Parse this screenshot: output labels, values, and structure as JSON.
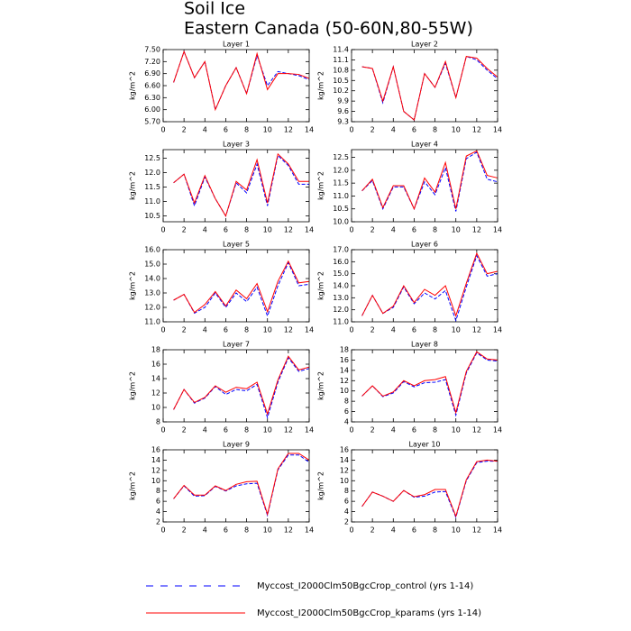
{
  "title": "Soil Ice",
  "subtitle": "Eastern Canada (50-60N,80-55W)",
  "chart_data": [
    {
      "type": "line",
      "title": "Layer 1",
      "ylabel": "kg/m^2",
      "x": [
        1,
        2,
        3,
        4,
        5,
        6,
        7,
        8,
        9,
        10,
        11,
        12,
        13,
        14
      ],
      "xlim": [
        0,
        14
      ],
      "xticks": [
        0,
        2,
        4,
        6,
        8,
        10,
        12,
        14
      ],
      "ylim": [
        5.7,
        7.5
      ],
      "yticks": [
        {
          "value": 5.7,
          "label": "5.70"
        },
        {
          "value": 6.0,
          "label": "6.00"
        },
        {
          "value": 6.3,
          "label": "6.30"
        },
        {
          "value": 6.6,
          "label": "6.60"
        },
        {
          "value": 6.9,
          "label": "6.90"
        },
        {
          "value": 7.2,
          "label": "7.20"
        },
        {
          "value": 7.5,
          "label": "7.50"
        }
      ],
      "series": [
        {
          "name": "Myccost_I2000Clm50BgcCrop_control (yrs 1-14)",
          "color": "#0000ff",
          "style": "dashed",
          "values": [
            6.68,
            7.45,
            6.8,
            7.2,
            6.0,
            6.6,
            7.05,
            6.4,
            7.35,
            6.6,
            6.95,
            6.9,
            6.85,
            6.75
          ]
        },
        {
          "name": "Myccost_I2000Clm50BgcCrop_kparams (yrs 1-14)",
          "color": "#ff0000",
          "style": "solid",
          "values": [
            6.68,
            7.45,
            6.8,
            7.2,
            6.0,
            6.6,
            7.05,
            6.4,
            7.4,
            6.5,
            6.9,
            6.9,
            6.88,
            6.78
          ]
        }
      ]
    },
    {
      "type": "line",
      "title": "Layer 2",
      "ylabel": "kg/m^2",
      "x": [
        1,
        2,
        3,
        4,
        5,
        6,
        7,
        8,
        9,
        10,
        11,
        12,
        13,
        14
      ],
      "xlim": [
        0,
        14
      ],
      "xticks": [
        0,
        2,
        4,
        6,
        8,
        10,
        12,
        14
      ],
      "ylim": [
        9.3,
        11.4
      ],
      "yticks": [
        9.3,
        9.6,
        9.9,
        10.2,
        10.5,
        10.8,
        11.1,
        11.4
      ],
      "series": [
        {
          "name": "Myccost_I2000Clm50BgcCrop_control (yrs 1-14)",
          "color": "#0000ff",
          "style": "dashed",
          "values": [
            10.9,
            10.85,
            9.85,
            10.9,
            9.6,
            9.35,
            10.7,
            10.3,
            11.0,
            10.0,
            11.2,
            11.1,
            10.8,
            10.55
          ]
        },
        {
          "name": "Myccost_I2000Clm50BgcCrop_kparams (yrs 1-14)",
          "color": "#ff0000",
          "style": "solid",
          "values": [
            10.9,
            10.85,
            9.9,
            10.9,
            9.6,
            9.35,
            10.7,
            10.3,
            11.05,
            10.0,
            11.2,
            11.15,
            10.85,
            10.6
          ]
        }
      ]
    },
    {
      "type": "line",
      "title": "Layer 3",
      "ylabel": "kg/m^2",
      "x": [
        1,
        2,
        3,
        4,
        5,
        6,
        7,
        8,
        9,
        10,
        11,
        12,
        13,
        14
      ],
      "xlim": [
        0,
        14
      ],
      "xticks": [
        0,
        2,
        4,
        6,
        8,
        10,
        12,
        14
      ],
      "ylim": [
        10.3,
        12.8
      ],
      "yticks": [
        10.5,
        {
          "value": 11,
          "label": "11.0"
        },
        11.5,
        {
          "value": 12,
          "label": "12.0"
        },
        12.5
      ],
      "series": [
        {
          "name": "Myccost_I2000Clm50BgcCrop_control (yrs 1-14)",
          "color": "#0000ff",
          "style": "dashed",
          "values": [
            11.65,
            11.95,
            10.85,
            11.85,
            11.1,
            10.5,
            11.65,
            11.3,
            12.3,
            10.85,
            12.6,
            12.25,
            11.6,
            11.6
          ]
        },
        {
          "name": "Myccost_I2000Clm50BgcCrop_kparams (yrs 1-14)",
          "color": "#ff0000",
          "style": "solid",
          "values": [
            11.65,
            11.95,
            10.95,
            11.9,
            11.1,
            10.5,
            11.7,
            11.4,
            12.45,
            10.95,
            12.65,
            12.3,
            11.7,
            11.7
          ]
        }
      ]
    },
    {
      "type": "line",
      "title": "Layer 4",
      "ylabel": "kg/m^2",
      "x": [
        1,
        2,
        3,
        4,
        5,
        6,
        7,
        8,
        9,
        10,
        11,
        12,
        13,
        14
      ],
      "xlim": [
        0,
        14
      ],
      "xticks": [
        0,
        2,
        4,
        6,
        8,
        10,
        12,
        14
      ],
      "ylim": [
        10.0,
        12.8
      ],
      "yticks": [
        {
          "value": 10,
          "label": "10.0"
        },
        10.5,
        {
          "value": 11,
          "label": "11.0"
        },
        11.5,
        {
          "value": 12,
          "label": "12.0"
        },
        12.5
      ],
      "series": [
        {
          "name": "Myccost_I2000Clm50BgcCrop_control (yrs 1-14)",
          "color": "#0000ff",
          "style": "dashed",
          "values": [
            11.2,
            11.6,
            10.5,
            11.35,
            11.35,
            10.5,
            11.55,
            11.05,
            12.1,
            10.4,
            12.45,
            12.7,
            11.65,
            11.55
          ]
        },
        {
          "name": "Myccost_I2000Clm50BgcCrop_kparams (yrs 1-14)",
          "color": "#ff0000",
          "style": "solid",
          "values": [
            11.2,
            11.65,
            10.55,
            11.4,
            11.4,
            10.5,
            11.7,
            11.15,
            12.3,
            10.5,
            12.55,
            12.75,
            11.8,
            11.7
          ]
        }
      ]
    },
    {
      "type": "line",
      "title": "Layer 5",
      "ylabel": "kg/m^2",
      "x": [
        1,
        2,
        3,
        4,
        5,
        6,
        7,
        8,
        9,
        10,
        11,
        12,
        13,
        14
      ],
      "xlim": [
        0,
        14
      ],
      "xticks": [
        0,
        2,
        4,
        6,
        8,
        10,
        12,
        14
      ],
      "ylim": [
        11,
        16
      ],
      "yticks": [
        {
          "value": 11,
          "label": "11.0"
        },
        {
          "value": 12,
          "label": "12.0"
        },
        {
          "value": 13,
          "label": "13.0"
        },
        {
          "value": 14,
          "label": "14.0"
        },
        {
          "value": 15,
          "label": "15.0"
        },
        {
          "value": 16,
          "label": "16.0"
        }
      ],
      "series": [
        {
          "name": "Myccost_I2000Clm50BgcCrop_control (yrs 1-14)",
          "color": "#0000ff",
          "style": "dashed",
          "values": [
            12.5,
            12.9,
            11.6,
            12.0,
            13.0,
            12.0,
            13.0,
            12.4,
            13.4,
            11.4,
            13.5,
            15.1,
            13.5,
            13.6
          ]
        },
        {
          "name": "Myccost_I2000Clm50BgcCrop_kparams (yrs 1-14)",
          "color": "#ff0000",
          "style": "solid",
          "values": [
            12.5,
            12.9,
            11.65,
            12.2,
            13.1,
            12.1,
            13.2,
            12.6,
            13.65,
            11.7,
            13.8,
            15.2,
            13.7,
            13.8
          ]
        }
      ]
    },
    {
      "type": "line",
      "title": "Layer 6",
      "ylabel": "kg/m^2",
      "x": [
        1,
        2,
        3,
        4,
        5,
        6,
        7,
        8,
        9,
        10,
        11,
        12,
        13,
        14
      ],
      "xlim": [
        0,
        14
      ],
      "xticks": [
        0,
        2,
        4,
        6,
        8,
        10,
        12,
        14
      ],
      "ylim": [
        11,
        17
      ],
      "yticks": [
        {
          "value": 11,
          "label": "11.0"
        },
        {
          "value": 12,
          "label": "12.0"
        },
        {
          "value": 13,
          "label": "13.0"
        },
        {
          "value": 14,
          "label": "14.0"
        },
        {
          "value": 15,
          "label": "15.0"
        },
        {
          "value": 16,
          "label": "16.0"
        },
        {
          "value": 17,
          "label": "17.0"
        }
      ],
      "series": [
        {
          "name": "Myccost_I2000Clm50BgcCrop_control (yrs 1-14)",
          "color": "#0000ff",
          "style": "dashed",
          "values": [
            11.5,
            13.2,
            11.7,
            12.2,
            13.9,
            12.5,
            13.4,
            12.9,
            13.6,
            11.1,
            13.9,
            16.5,
            14.8,
            15.0
          ]
        },
        {
          "name": "Myccost_I2000Clm50BgcCrop_kparams (yrs 1-14)",
          "color": "#ff0000",
          "style": "solid",
          "values": [
            11.5,
            13.2,
            11.7,
            12.3,
            14.0,
            12.6,
            13.7,
            13.2,
            14.0,
            11.5,
            14.2,
            16.7,
            15.0,
            15.2
          ]
        }
      ]
    },
    {
      "type": "line",
      "title": "Layer 7",
      "ylabel": "kg/m^2",
      "x": [
        1,
        2,
        3,
        4,
        5,
        6,
        7,
        8,
        9,
        10,
        11,
        12,
        13,
        14
      ],
      "xlim": [
        0,
        14
      ],
      "xticks": [
        0,
        2,
        4,
        6,
        8,
        10,
        12,
        14
      ],
      "ylim": [
        8,
        18
      ],
      "yticks": [
        8,
        10,
        12,
        14,
        16,
        18
      ],
      "series": [
        {
          "name": "Myccost_I2000Clm50BgcCrop_control (yrs 1-14)",
          "color": "#0000ff",
          "style": "dashed",
          "values": [
            9.7,
            12.5,
            10.6,
            11.3,
            12.9,
            11.8,
            12.5,
            12.3,
            13.2,
            8.6,
            13.5,
            16.9,
            15.0,
            15.4
          ]
        },
        {
          "name": "Myccost_I2000Clm50BgcCrop_kparams (yrs 1-14)",
          "color": "#ff0000",
          "style": "solid",
          "values": [
            9.7,
            12.5,
            10.7,
            11.4,
            13.0,
            12.1,
            12.8,
            12.6,
            13.5,
            9.1,
            13.8,
            17.1,
            15.2,
            15.6
          ]
        }
      ]
    },
    {
      "type": "line",
      "title": "Layer 8",
      "ylabel": "kg/m^2",
      "x": [
        1,
        2,
        3,
        4,
        5,
        6,
        7,
        8,
        9,
        10,
        11,
        12,
        13,
        14
      ],
      "xlim": [
        0,
        14
      ],
      "xticks": [
        0,
        2,
        4,
        6,
        8,
        10,
        12,
        14
      ],
      "ylim": [
        4,
        18
      ],
      "yticks": [
        4,
        6,
        8,
        10,
        12,
        14,
        16,
        18
      ],
      "series": [
        {
          "name": "Myccost_I2000Clm50BgcCrop_control (yrs 1-14)",
          "color": "#0000ff",
          "style": "dashed",
          "values": [
            9.0,
            11.0,
            8.9,
            9.6,
            11.8,
            10.8,
            11.6,
            11.7,
            12.2,
            5.3,
            13.5,
            17.4,
            16.0,
            15.8
          ]
        },
        {
          "name": "Myccost_I2000Clm50BgcCrop_kparams (yrs 1-14)",
          "color": "#ff0000",
          "style": "solid",
          "values": [
            9.0,
            11.0,
            9.0,
            9.8,
            12.0,
            11.0,
            12.0,
            12.2,
            12.8,
            5.8,
            13.8,
            17.6,
            16.2,
            16.0
          ]
        }
      ]
    },
    {
      "type": "line",
      "title": "Layer 9",
      "ylabel": "kg/m^2",
      "x": [
        1,
        2,
        3,
        4,
        5,
        6,
        7,
        8,
        9,
        10,
        11,
        12,
        13,
        14
      ],
      "xlim": [
        0,
        14
      ],
      "xticks": [
        0,
        2,
        4,
        6,
        8,
        10,
        12,
        14
      ],
      "ylim": [
        2,
        16
      ],
      "yticks": [
        2,
        4,
        6,
        8,
        10,
        12,
        14,
        16
      ],
      "series": [
        {
          "name": "Myccost_I2000Clm50BgcCrop_control (yrs 1-14)",
          "color": "#0000ff",
          "style": "dashed",
          "values": [
            6.5,
            9.0,
            7.0,
            7.1,
            8.9,
            8.0,
            9.0,
            9.4,
            9.5,
            3.3,
            12.1,
            15.0,
            15.0,
            13.6
          ]
        },
        {
          "name": "Myccost_I2000Clm50BgcCrop_kparams (yrs 1-14)",
          "color": "#ff0000",
          "style": "solid",
          "values": [
            6.5,
            9.1,
            7.2,
            7.2,
            9.0,
            8.1,
            9.3,
            9.8,
            9.9,
            3.5,
            12.3,
            15.3,
            15.3,
            14.0
          ]
        }
      ]
    },
    {
      "type": "line",
      "title": "Layer 10",
      "ylabel": "kg/m^2",
      "x": [
        1,
        2,
        3,
        4,
        5,
        6,
        7,
        8,
        9,
        10,
        11,
        12,
        13,
        14
      ],
      "xlim": [
        0,
        14
      ],
      "xticks": [
        0,
        2,
        4,
        6,
        8,
        10,
        12,
        14
      ],
      "ylim": [
        2,
        16
      ],
      "yticks": [
        2,
        4,
        6,
        8,
        10,
        12,
        14,
        16
      ],
      "series": [
        {
          "name": "Myccost_I2000Clm50BgcCrop_control (yrs 1-14)",
          "color": "#0000ff",
          "style": "dashed",
          "values": [
            5.0,
            7.8,
            7.0,
            6.0,
            8.1,
            6.8,
            7.0,
            7.8,
            7.9,
            2.9,
            10.0,
            13.5,
            13.8,
            13.8
          ]
        },
        {
          "name": "Myccost_I2000Clm50BgcCrop_kparams (yrs 1-14)",
          "color": "#ff0000",
          "style": "solid",
          "values": [
            5.0,
            7.8,
            7.0,
            6.0,
            8.1,
            6.9,
            7.3,
            8.3,
            8.3,
            3.1,
            10.2,
            13.7,
            14.0,
            13.8
          ]
        }
      ]
    }
  ]
}
